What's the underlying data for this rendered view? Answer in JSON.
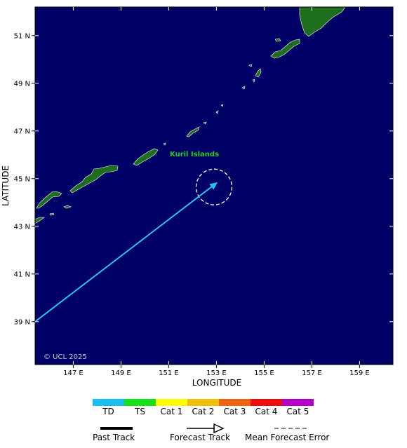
{
  "map": {
    "region_label": "Kuril Islands",
    "copyright": "© UCL 2025",
    "colors": {
      "ocean": "#000066",
      "land": "#1e6e1e",
      "land_outline": "#ffffff",
      "label": "#22cc22",
      "track": "#22c3f5",
      "error_circle": "#ffffff",
      "copyright": "#c8c8c8"
    }
  },
  "axes": {
    "x_title": "LONGITUDE",
    "y_title": "LATITUDE",
    "x_ticks": [
      {
        "value": 147,
        "label": "147 E"
      },
      {
        "value": 149,
        "label": "149 E"
      },
      {
        "value": 151,
        "label": "151 E"
      },
      {
        "value": 153,
        "label": "153 E"
      },
      {
        "value": 155,
        "label": "155 E"
      },
      {
        "value": 157,
        "label": "157 E"
      },
      {
        "value": 159,
        "label": "159 E"
      }
    ],
    "y_ticks": [
      {
        "value": 39,
        "label": "39 N"
      },
      {
        "value": 41,
        "label": "41 N"
      },
      {
        "value": 43,
        "label": "43 N"
      },
      {
        "value": 45,
        "label": "45 N"
      },
      {
        "value": 47,
        "label": "47 N"
      },
      {
        "value": 49,
        "label": "49 N"
      },
      {
        "value": 51,
        "label": "51 N"
      }
    ],
    "lon_range": [
      145.4,
      160.4
    ],
    "lat_range": [
      37.2,
      52.2
    ]
  },
  "storm": {
    "forecast_track": [
      {
        "lon": 145.4,
        "lat": 39.0
      },
      {
        "lon": 153.05,
        "lat": 44.85
      }
    ],
    "error_circle": {
      "lon": 152.9,
      "lat": 44.65,
      "radius_deg": 0.75
    }
  },
  "legend": {
    "categories": [
      {
        "label": "TD",
        "color": "#19bff0"
      },
      {
        "label": "TS",
        "color": "#16e016"
      },
      {
        "label": "Cat 1",
        "color": "#ffff00"
      },
      {
        "label": "Cat 2",
        "color": "#f0bf0c"
      },
      {
        "label": "Cat 3",
        "color": "#f06414"
      },
      {
        "label": "Cat 4",
        "color": "#ee0c0c"
      },
      {
        "label": "Cat 5",
        "color": "#b400c8"
      }
    ],
    "past_track": "Past Track",
    "forecast_track": "Forecast Track",
    "mean_error": "Mean Forecast Error"
  }
}
